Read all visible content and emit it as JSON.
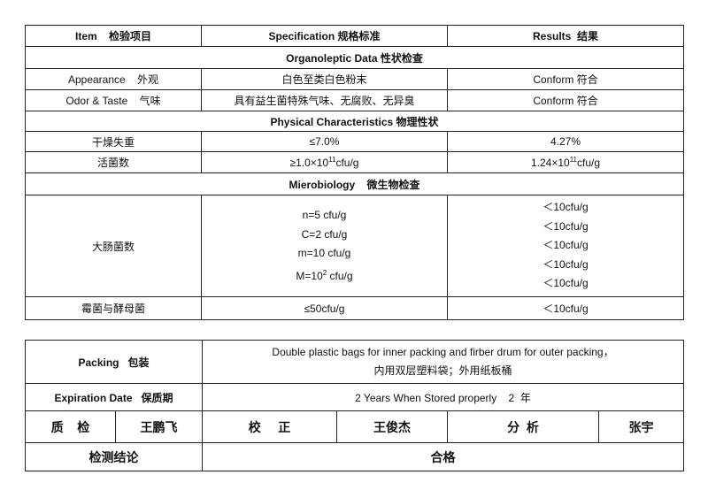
{
  "header": {
    "item": "Item    检验项目",
    "specification": "Specification 规格标准",
    "results": "Results  结果"
  },
  "sections": {
    "organoleptic": "Organoleptic Data 性状检查",
    "physical": "Physical Characteristics 物理性状",
    "micro": "Mierobiology    微生物检查"
  },
  "rows": {
    "appearance": {
      "item": "Appearance    外观",
      "spec": "白色至类白色粉末",
      "result": "Conform 符合"
    },
    "odor": {
      "item": "Odor & Taste    气味",
      "spec": "具有益生菌特殊气味、无腐败、无异臭",
      "result": "Conform 符合"
    },
    "loss": {
      "item": "干燥失重",
      "spec": "≤7.0%",
      "result": "4.27%"
    },
    "viable": {
      "item": "活菌数",
      "spec_pre": "≥1.0×10",
      "spec_exp": "11",
      "spec_post": "cfu/g",
      "result_pre": "1.24×10",
      "result_exp": "11",
      "result_post": "cfu/g"
    },
    "coliform": {
      "item": "大肠菌数",
      "spec": [
        "n=5 cfu/g",
        "C=2 cfu/g",
        "m=10 cfu/g"
      ],
      "spec_last_pre": "M=10",
      "spec_last_exp": "2",
      "spec_last_post": " cfu/g",
      "results": [
        "＜10cfu/g",
        "＜10cfu/g",
        "＜10cfu/g",
        "＜10cfu/g",
        "＜10cfu/g"
      ]
    },
    "mold": {
      "item": "霉菌与酵母菌",
      "spec": "≤50cfu/g",
      "result": "＜10cfu/g"
    }
  },
  "footer": {
    "packing_label": "Packing   包装",
    "packing_en": "Double plastic bags for inner packing and firber drum for outer packing，",
    "packing_cn": "内用双层塑料袋；外用纸板桶",
    "expiration_label": "Expiration Date   保质期",
    "expiration_value": "2 Years When Stored properly    2  年",
    "qc_label": "质    检",
    "qc_name": "王鹏飞",
    "proof_label": "校     正",
    "proof_name": "王俊杰",
    "analysis_label": "分  析",
    "analysis_name": "张宇",
    "conclusion_label": "检测结论",
    "conclusion_value": "合格"
  }
}
